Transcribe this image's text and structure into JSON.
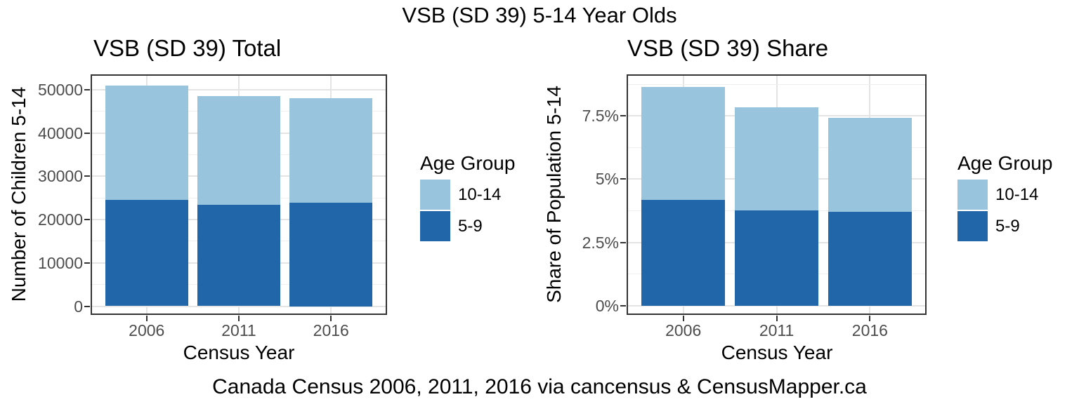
{
  "figure": {
    "title": "VSB (SD 39) 5-14 Year Olds",
    "caption": "Canada Census 2006, 2011, 2016 via cancensus & CensusMapper.ca",
    "background": "#FFFFFF"
  },
  "palette": {
    "age_10_14": "#98C4DE",
    "age_5_9": "#2066A9",
    "grid_major": "#E4E4E4",
    "grid_minor": "#EFEFEF",
    "panel_border": "#333333",
    "axis_text": "#4D4D4D",
    "title_text": "#000000"
  },
  "legend": {
    "title": "Age Group",
    "items": [
      {
        "label": "10-14",
        "color": "#98C4DE"
      },
      {
        "label": "5-9",
        "color": "#2066A9"
      }
    ]
  },
  "chart_data": [
    {
      "id": "total",
      "type": "bar",
      "stacked": true,
      "title": "VSB (SD 39) Total",
      "xlabel": "Census Year",
      "ylabel": "Number of Children 5-14",
      "categories": [
        "2006",
        "2011",
        "2016"
      ],
      "series": [
        {
          "name": "5-9",
          "color": "#2066A9",
          "values": [
            24550,
            23350,
            23850
          ]
        },
        {
          "name": "10-14",
          "color": "#98C4DE",
          "values": [
            26400,
            25150,
            24200
          ]
        }
      ],
      "stack_totals": [
        50950,
        48500,
        48050
      ],
      "y_ticks": {
        "values": [
          0,
          10000,
          20000,
          30000,
          40000,
          50000
        ],
        "labels": [
          "0",
          "10000",
          "20000",
          "30000",
          "40000",
          "50000"
        ]
      },
      "y_minor_ticks": [
        5000,
        15000,
        25000,
        35000,
        45000
      ],
      "ylim": [
        0,
        50000
      ],
      "grid": true,
      "legend_position": "right"
    },
    {
      "id": "share",
      "type": "bar",
      "stacked": true,
      "title": "VSB (SD 39) Share",
      "xlabel": "Census Year",
      "ylabel": "Share of Population 5-14",
      "categories": [
        "2006",
        "2011",
        "2016"
      ],
      "series": [
        {
          "name": "5-9",
          "color": "#2066A9",
          "values": [
            4.18,
            3.77,
            3.7
          ]
        },
        {
          "name": "10-14",
          "color": "#98C4DE",
          "values": [
            4.45,
            4.07,
            3.72
          ]
        }
      ],
      "stack_totals": [
        8.63,
        7.84,
        7.42
      ],
      "y_ticks": {
        "values": [
          0,
          2.5,
          5,
          7.5
        ],
        "labels": [
          "0%",
          "2.5%",
          "5%",
          "7.5%"
        ]
      },
      "y_minor_ticks": [
        1.25,
        3.75,
        6.25,
        8.75
      ],
      "ylim": [
        0,
        7.5
      ],
      "grid": true,
      "legend_position": "right"
    }
  ]
}
